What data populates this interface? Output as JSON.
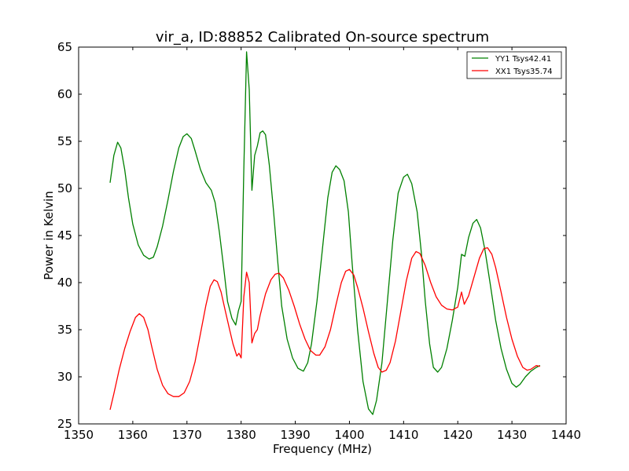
{
  "chart_data": {
    "type": "line",
    "title": "vir_a, ID:88852 Calibrated On-source spectrum",
    "xlabel": "Frequency (MHz)",
    "ylabel": "Power in Kelvin",
    "xlim": [
      1350,
      1440
    ],
    "ylim": [
      25,
      65
    ],
    "xticks": [
      "1350",
      "1360",
      "1370",
      "1380",
      "1390",
      "1400",
      "1410",
      "1420",
      "1430",
      "1440"
    ],
    "yticks": [
      "25",
      "30",
      "35",
      "40",
      "45",
      "50",
      "55",
      "60",
      "65"
    ],
    "grid": false,
    "legend_position": "top-right",
    "series": [
      {
        "name": "YY1 Tsys42.41",
        "color": "#008000",
        "points": [
          [
            1355.8,
            50.6
          ],
          [
            1356.5,
            53.5
          ],
          [
            1357.2,
            54.9
          ],
          [
            1357.8,
            54.3
          ],
          [
            1358.5,
            52.0
          ],
          [
            1359.2,
            49.0
          ],
          [
            1360.0,
            46.2
          ],
          [
            1361.0,
            44.0
          ],
          [
            1362.0,
            42.9
          ],
          [
            1363.0,
            42.5
          ],
          [
            1363.8,
            42.7
          ],
          [
            1364.5,
            43.8
          ],
          [
            1365.5,
            46.0
          ],
          [
            1366.5,
            48.8
          ],
          [
            1367.5,
            51.8
          ],
          [
            1368.5,
            54.3
          ],
          [
            1369.3,
            55.5
          ],
          [
            1370.0,
            55.8
          ],
          [
            1370.8,
            55.3
          ],
          [
            1371.5,
            54.0
          ],
          [
            1372.5,
            52.0
          ],
          [
            1373.5,
            50.6
          ],
          [
            1374.5,
            49.8
          ],
          [
            1375.2,
            48.5
          ],
          [
            1376.0,
            45.3
          ],
          [
            1376.8,
            41.5
          ],
          [
            1377.5,
            38.0
          ],
          [
            1378.3,
            36.2
          ],
          [
            1379.0,
            35.5
          ],
          [
            1379.5,
            37.0
          ],
          [
            1380.0,
            38.0
          ],
          [
            1380.5,
            52.0
          ],
          [
            1381.0,
            64.5
          ],
          [
            1381.5,
            60.5
          ],
          [
            1382.0,
            49.8
          ],
          [
            1382.5,
            53.5
          ],
          [
            1383.0,
            54.5
          ],
          [
            1383.5,
            55.9
          ],
          [
            1384.0,
            56.1
          ],
          [
            1384.5,
            55.7
          ],
          [
            1385.2,
            52.5
          ],
          [
            1386.0,
            47.5
          ],
          [
            1386.8,
            42.0
          ],
          [
            1387.5,
            37.5
          ],
          [
            1388.5,
            34.0
          ],
          [
            1389.5,
            32.0
          ],
          [
            1390.5,
            30.9
          ],
          [
            1391.5,
            30.6
          ],
          [
            1392.3,
            31.5
          ],
          [
            1393.0,
            33.5
          ],
          [
            1394.0,
            38.0
          ],
          [
            1395.0,
            43.5
          ],
          [
            1396.0,
            49.0
          ],
          [
            1396.8,
            51.7
          ],
          [
            1397.5,
            52.4
          ],
          [
            1398.2,
            52.0
          ],
          [
            1399.0,
            50.8
          ],
          [
            1399.8,
            47.5
          ],
          [
            1400.5,
            42.0
          ],
          [
            1401.5,
            35.0
          ],
          [
            1402.5,
            29.5
          ],
          [
            1403.5,
            26.6
          ],
          [
            1404.3,
            26.0
          ],
          [
            1405.0,
            27.5
          ],
          [
            1406.0,
            31.5
          ],
          [
            1407.0,
            38.0
          ],
          [
            1408.0,
            44.5
          ],
          [
            1409.0,
            49.5
          ],
          [
            1410.0,
            51.2
          ],
          [
            1410.7,
            51.5
          ],
          [
            1411.5,
            50.5
          ],
          [
            1412.5,
            47.5
          ],
          [
            1413.3,
            43.0
          ],
          [
            1414.0,
            38.0
          ],
          [
            1414.8,
            33.5
          ],
          [
            1415.5,
            31.0
          ],
          [
            1416.3,
            30.5
          ],
          [
            1417.0,
            31.0
          ],
          [
            1418.0,
            33.0
          ],
          [
            1419.0,
            36.0
          ],
          [
            1420.0,
            39.5
          ],
          [
            1420.7,
            43.0
          ],
          [
            1421.3,
            42.8
          ],
          [
            1422.0,
            44.8
          ],
          [
            1422.8,
            46.3
          ],
          [
            1423.5,
            46.7
          ],
          [
            1424.2,
            45.8
          ],
          [
            1425.0,
            43.5
          ],
          [
            1426.0,
            39.8
          ],
          [
            1427.0,
            36.0
          ],
          [
            1428.0,
            33.0
          ],
          [
            1429.0,
            30.8
          ],
          [
            1430.0,
            29.3
          ],
          [
            1430.8,
            28.9
          ],
          [
            1431.5,
            29.2
          ],
          [
            1432.5,
            30.0
          ],
          [
            1433.5,
            30.6
          ],
          [
            1434.5,
            31.0
          ],
          [
            1435.2,
            31.2
          ]
        ]
      },
      {
        "name": "XX1 Tsys35.74",
        "color": "#ff0000",
        "points": [
          [
            1355.8,
            26.5
          ],
          [
            1356.5,
            28.2
          ],
          [
            1357.5,
            30.8
          ],
          [
            1358.5,
            33.0
          ],
          [
            1359.5,
            34.8
          ],
          [
            1360.5,
            36.3
          ],
          [
            1361.2,
            36.7
          ],
          [
            1362.0,
            36.3
          ],
          [
            1362.8,
            35.0
          ],
          [
            1363.5,
            33.2
          ],
          [
            1364.5,
            30.8
          ],
          [
            1365.5,
            29.1
          ],
          [
            1366.5,
            28.2
          ],
          [
            1367.5,
            27.9
          ],
          [
            1368.5,
            27.9
          ],
          [
            1369.5,
            28.3
          ],
          [
            1370.5,
            29.5
          ],
          [
            1371.5,
            31.6
          ],
          [
            1372.5,
            34.6
          ],
          [
            1373.5,
            37.6
          ],
          [
            1374.3,
            39.6
          ],
          [
            1375.0,
            40.3
          ],
          [
            1375.6,
            40.1
          ],
          [
            1376.3,
            39.0
          ],
          [
            1377.0,
            37.2
          ],
          [
            1377.8,
            35.2
          ],
          [
            1378.5,
            33.5
          ],
          [
            1379.2,
            32.2
          ],
          [
            1379.6,
            32.5
          ],
          [
            1380.0,
            32.0
          ],
          [
            1380.5,
            38.5
          ],
          [
            1381.0,
            41.1
          ],
          [
            1381.5,
            40.0
          ],
          [
            1382.0,
            33.6
          ],
          [
            1382.5,
            34.6
          ],
          [
            1383.0,
            35.0
          ],
          [
            1383.5,
            36.5
          ],
          [
            1384.5,
            38.8
          ],
          [
            1385.5,
            40.3
          ],
          [
            1386.3,
            40.9
          ],
          [
            1387.0,
            41.0
          ],
          [
            1387.8,
            40.5
          ],
          [
            1388.8,
            39.2
          ],
          [
            1389.8,
            37.5
          ],
          [
            1390.8,
            35.6
          ],
          [
            1391.8,
            34.0
          ],
          [
            1392.8,
            32.8
          ],
          [
            1393.8,
            32.3
          ],
          [
            1394.5,
            32.3
          ],
          [
            1395.5,
            33.2
          ],
          [
            1396.5,
            35.0
          ],
          [
            1397.5,
            37.6
          ],
          [
            1398.5,
            40.0
          ],
          [
            1399.3,
            41.2
          ],
          [
            1400.0,
            41.4
          ],
          [
            1400.8,
            40.8
          ],
          [
            1401.5,
            39.5
          ],
          [
            1402.5,
            37.3
          ],
          [
            1403.5,
            34.8
          ],
          [
            1404.5,
            32.5
          ],
          [
            1405.3,
            31.0
          ],
          [
            1406.0,
            30.5
          ],
          [
            1406.8,
            30.7
          ],
          [
            1407.5,
            31.5
          ],
          [
            1408.5,
            33.8
          ],
          [
            1409.5,
            37.0
          ],
          [
            1410.5,
            40.2
          ],
          [
            1411.5,
            42.6
          ],
          [
            1412.3,
            43.3
          ],
          [
            1413.0,
            43.1
          ],
          [
            1414.0,
            41.8
          ],
          [
            1415.0,
            40.0
          ],
          [
            1416.0,
            38.5
          ],
          [
            1417.0,
            37.6
          ],
          [
            1418.0,
            37.2
          ],
          [
            1419.0,
            37.1
          ],
          [
            1420.0,
            37.4
          ],
          [
            1420.7,
            39.0
          ],
          [
            1421.2,
            37.7
          ],
          [
            1422.0,
            38.6
          ],
          [
            1423.0,
            40.6
          ],
          [
            1424.0,
            42.6
          ],
          [
            1424.8,
            43.6
          ],
          [
            1425.5,
            43.7
          ],
          [
            1426.3,
            43.0
          ],
          [
            1427.0,
            41.6
          ],
          [
            1428.0,
            39.0
          ],
          [
            1429.0,
            36.3
          ],
          [
            1430.0,
            34.0
          ],
          [
            1431.0,
            32.2
          ],
          [
            1432.0,
            31.0
          ],
          [
            1432.8,
            30.7
          ],
          [
            1433.5,
            30.8
          ],
          [
            1434.5,
            31.2
          ],
          [
            1435.2,
            31.1
          ]
        ]
      }
    ]
  }
}
